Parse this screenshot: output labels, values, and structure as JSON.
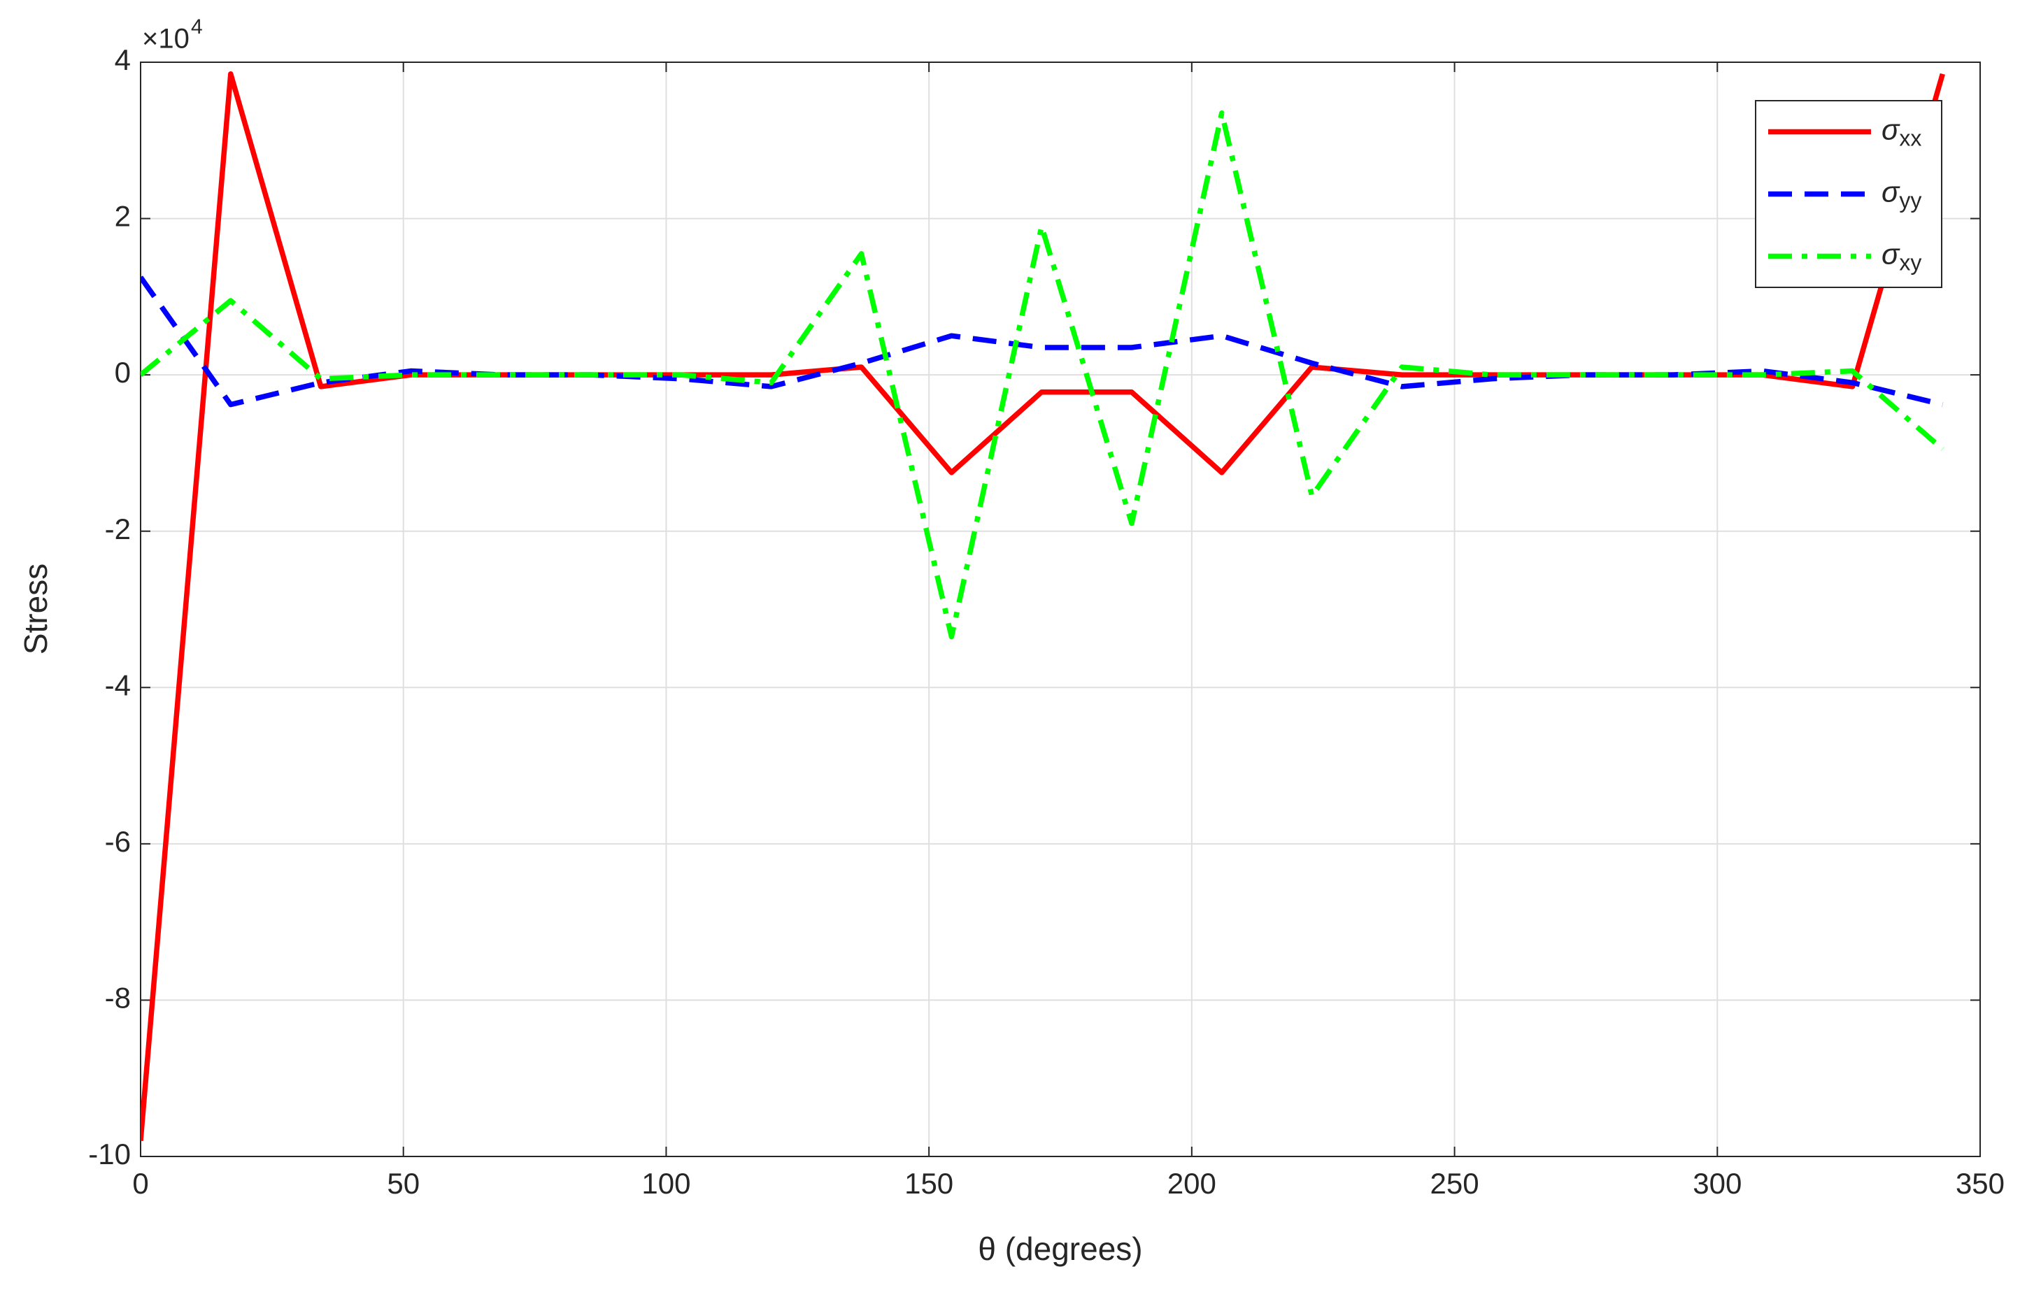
{
  "chart_data": {
    "type": "line",
    "x_label": "θ (degrees)",
    "y_label": "Stress",
    "y_multiplier": "×10",
    "y_multiplier_exponent": "4",
    "x": [
      0,
      17.14,
      34.29,
      51.43,
      68.57,
      85.71,
      102.86,
      120,
      137.14,
      154.29,
      171.43,
      188.57,
      205.71,
      222.86,
      240,
      257.14,
      274.29,
      291.43,
      308.57,
      325.71,
      342.86
    ],
    "series": [
      {
        "name": "σxx",
        "color": "#ff0000",
        "dash": "solid",
        "values": [
          -9.8,
          3.85,
          -0.15,
          0,
          0,
          0,
          0,
          0,
          0.1,
          -1.25,
          -0.22,
          -0.22,
          -1.25,
          0.1,
          0,
          0,
          0,
          0,
          0,
          -0.15,
          3.85
        ]
      },
      {
        "name": "σyy",
        "color": "#0000ff",
        "dash": "dashed",
        "values": [
          1.25,
          -0.38,
          -0.1,
          0.05,
          0,
          0,
          -0.05,
          -0.15,
          0.15,
          0.5,
          0.35,
          0.35,
          0.5,
          0.15,
          -0.15,
          -0.05,
          0,
          0,
          0.05,
          -0.1,
          -0.38
        ]
      },
      {
        "name": "σxy",
        "color": "#00ff00",
        "dash": "dashdot",
        "values": [
          0,
          0.95,
          -0.05,
          0,
          0,
          0,
          0,
          -0.1,
          1.55,
          -3.35,
          1.9,
          -1.9,
          3.35,
          -1.55,
          0.1,
          0,
          0,
          0,
          0,
          0.05,
          -0.95
        ]
      }
    ],
    "xlim": [
      0,
      350
    ],
    "xticks": [
      0,
      50,
      100,
      150,
      200,
      250,
      300,
      350
    ],
    "ylim": [
      -10,
      4
    ],
    "yticks": [
      -10,
      -8,
      -6,
      -4,
      -2,
      0,
      2,
      4
    ],
    "grid": true,
    "legend": "northeast"
  }
}
